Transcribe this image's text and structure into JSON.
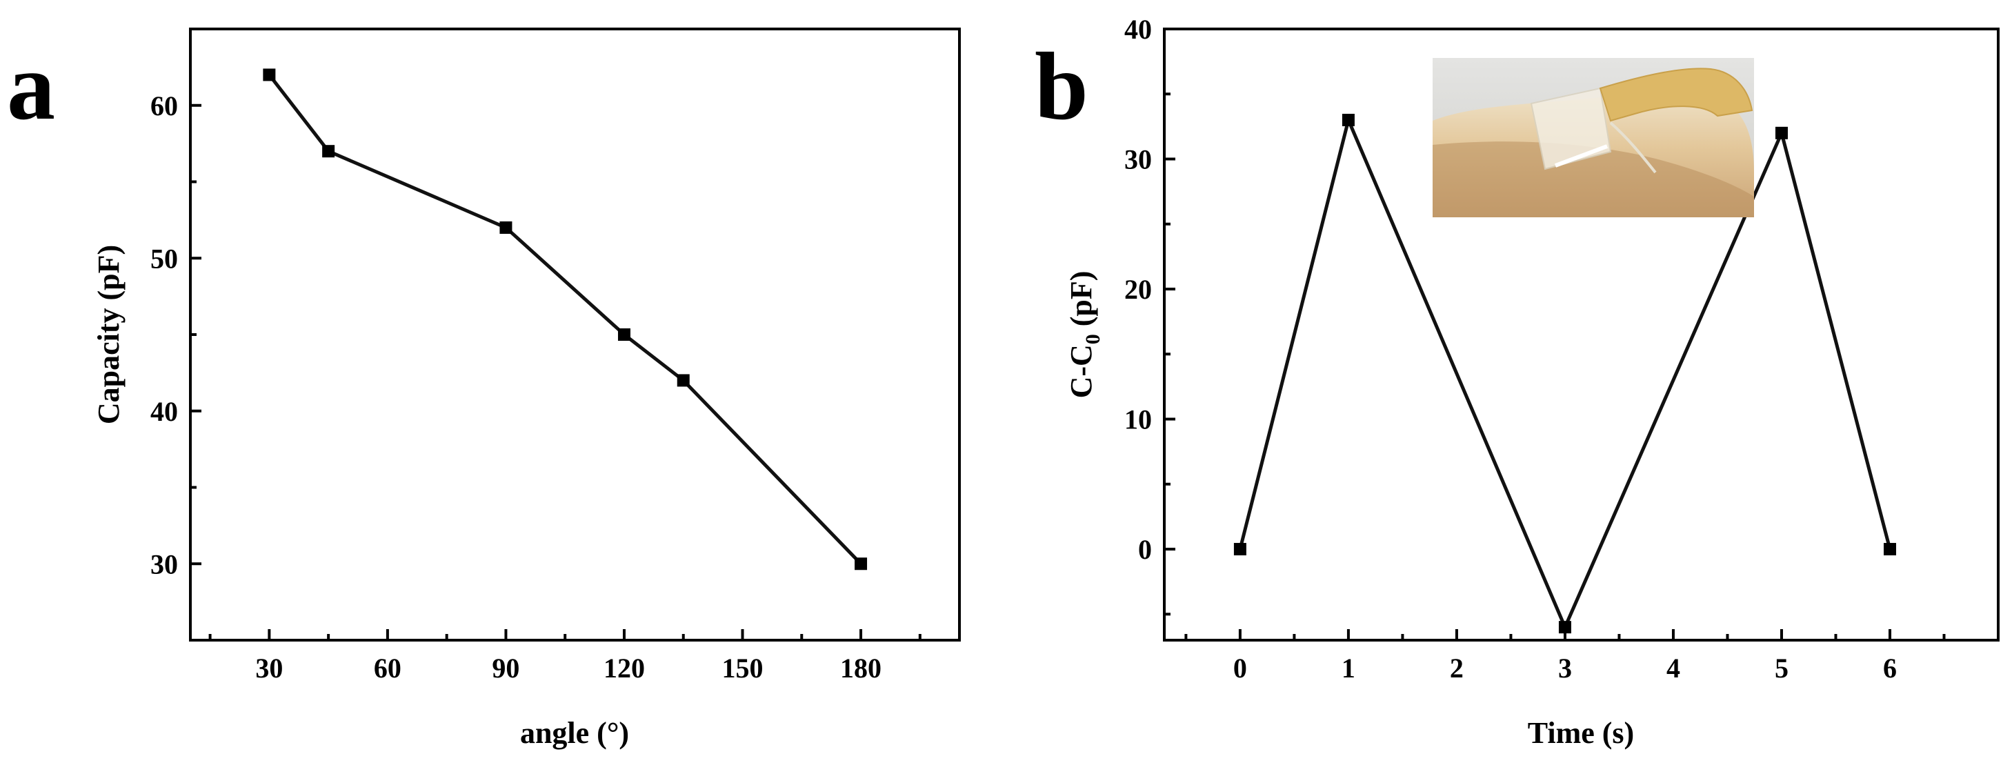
{
  "chart_data": [
    {
      "panel": "a",
      "type": "line",
      "xlabel": "angle (°)",
      "ylabel": "Capacity (pF)",
      "xlim": [
        10,
        205
      ],
      "ylim": [
        25,
        65
      ],
      "xticks": [
        30,
        60,
        90,
        120,
        150,
        180
      ],
      "yticks": [
        30,
        40,
        50,
        60
      ],
      "x": [
        30,
        45,
        90,
        120,
        135,
        180
      ],
      "y": [
        62,
        57,
        52,
        45,
        42,
        30
      ],
      "marker": "square",
      "grid": false
    },
    {
      "panel": "b",
      "type": "line",
      "xlabel": "Time (s)",
      "ylabel_main": "C-C",
      "ylabel_sub": "0",
      "ylabel_unit": " (pF)",
      "xlim": [
        -0.7,
        7.0
      ],
      "ylim": [
        -7,
        40
      ],
      "xticks": [
        0,
        1,
        2,
        3,
        4,
        5,
        6
      ],
      "yticks": [
        0,
        10,
        20,
        30,
        40
      ],
      "x": [
        0,
        1,
        3,
        5,
        6
      ],
      "y": [
        0,
        33,
        -6,
        32,
        0
      ],
      "marker": "square",
      "grid": false,
      "inset": "photo of capacitive sensor attached over a bent finger joint"
    }
  ]
}
